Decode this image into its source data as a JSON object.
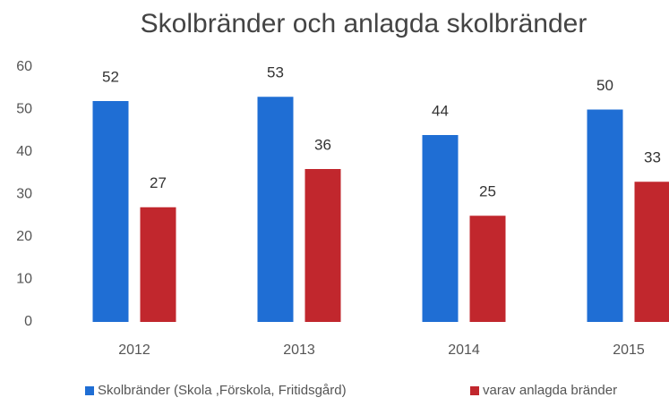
{
  "chart_data": {
    "type": "bar",
    "title": "Skolbränder och anlagda skolbränder",
    "categories": [
      "2012",
      "2013",
      "2014",
      "2015"
    ],
    "series": [
      {
        "name": "Skolbränder (Skola ,Förskola, Fritidsgård)",
        "color": "#1f6ed4",
        "values": [
          52,
          53,
          44,
          50
        ]
      },
      {
        "name": "varav anlagda bränder",
        "color": "#c1272d",
        "values": [
          27,
          36,
          25,
          33
        ]
      }
    ],
    "ylim": [
      0,
      60
    ],
    "yticks": [
      0,
      10,
      20,
      30,
      40,
      50,
      60
    ],
    "grid": false,
    "legend": "bottom"
  }
}
